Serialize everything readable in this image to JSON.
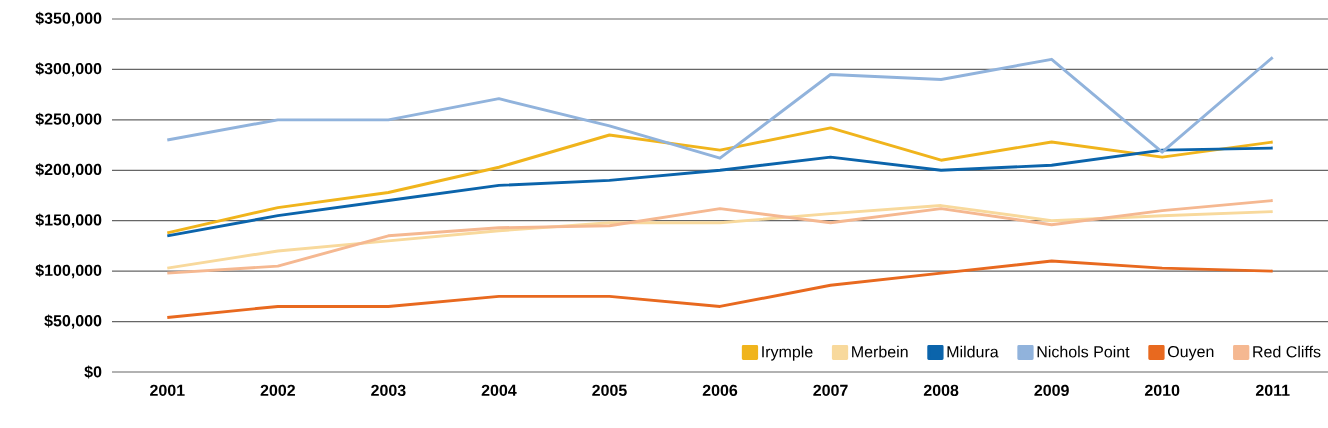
{
  "chart_data": {
    "type": "line",
    "categories": [
      "2001",
      "2002",
      "2003",
      "2004",
      "2005",
      "2006",
      "2007",
      "2008",
      "2009",
      "2010",
      "2011"
    ],
    "series": [
      {
        "name": "Irymple",
        "color": "#f0b41c",
        "values": [
          138000,
          163000,
          178000,
          203000,
          235000,
          220000,
          242000,
          210000,
          228000,
          213000,
          228000
        ]
      },
      {
        "name": "Merbein",
        "color": "#f8d99c",
        "values": [
          103000,
          120000,
          130000,
          140000,
          148000,
          148000,
          157000,
          165000,
          150000,
          155000,
          159000
        ]
      },
      {
        "name": "Mildura",
        "color": "#0b64ab",
        "values": [
          135000,
          155000,
          170000,
          185000,
          190000,
          200000,
          213000,
          200000,
          205000,
          220000,
          222000
        ]
      },
      {
        "name": "Nichols Point",
        "color": "#91b3dc",
        "values": [
          230000,
          250000,
          250000,
          271000,
          244000,
          212000,
          295000,
          290000,
          310000,
          218000,
          312000
        ]
      },
      {
        "name": "Ouyen",
        "color": "#e8691f",
        "values": [
          54000,
          65000,
          65000,
          75000,
          75000,
          65000,
          86000,
          98000,
          110000,
          103000,
          100000
        ]
      },
      {
        "name": "Red Cliffs",
        "color": "#f5b891",
        "values": [
          98000,
          105000,
          135000,
          143000,
          145000,
          162000,
          148000,
          162000,
          146000,
          160000,
          170000
        ]
      }
    ],
    "ylim": [
      0,
      350000
    ],
    "yticks": [
      {
        "value": 0,
        "label": "$0"
      },
      {
        "value": 50000,
        "label": "$50,000"
      },
      {
        "value": 100000,
        "label": "$100,000"
      },
      {
        "value": 150000,
        "label": "$150,000"
      },
      {
        "value": 200000,
        "label": "$200,000"
      },
      {
        "value": 250000,
        "label": "$250,000"
      },
      {
        "value": 300000,
        "label": "$300,000"
      },
      {
        "value": 350000,
        "label": "$350,000"
      }
    ],
    "grid": "y",
    "legend": "bottom right",
    "marker": "none",
    "line_style": "solid"
  }
}
